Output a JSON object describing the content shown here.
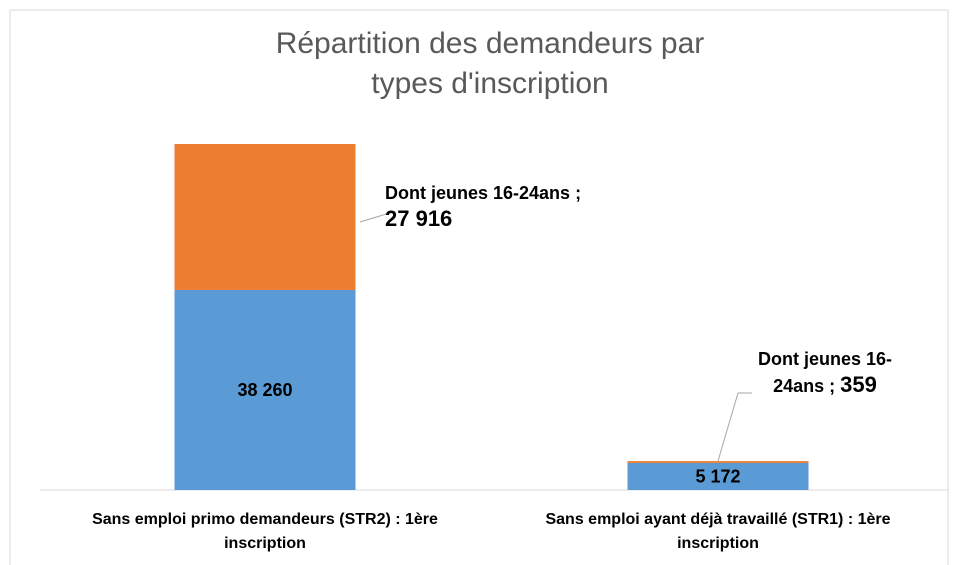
{
  "chart_data": {
    "type": "stacked_bar",
    "title": "Répartition des demandeurs par types d'inscription",
    "categories": [
      "Sans emploi primo demandeurs (STR2) : 1ère inscription",
      "Sans emploi ayant déjà travaillé (STR1) : 1ère inscription"
    ],
    "series": [
      {
        "color": "#5b9bd5",
        "values": [
          38260,
          5172
        ],
        "value_labels": [
          "38 260",
          "5 172"
        ]
      },
      {
        "name": "Dont jeunes 16-24ans",
        "color": "#ed7d31",
        "values": [
          27916,
          359
        ],
        "value_labels": [
          "27 916",
          "359"
        ]
      }
    ],
    "value_label_separator": " ; ",
    "ylim": [
      0,
      70000
    ]
  }
}
